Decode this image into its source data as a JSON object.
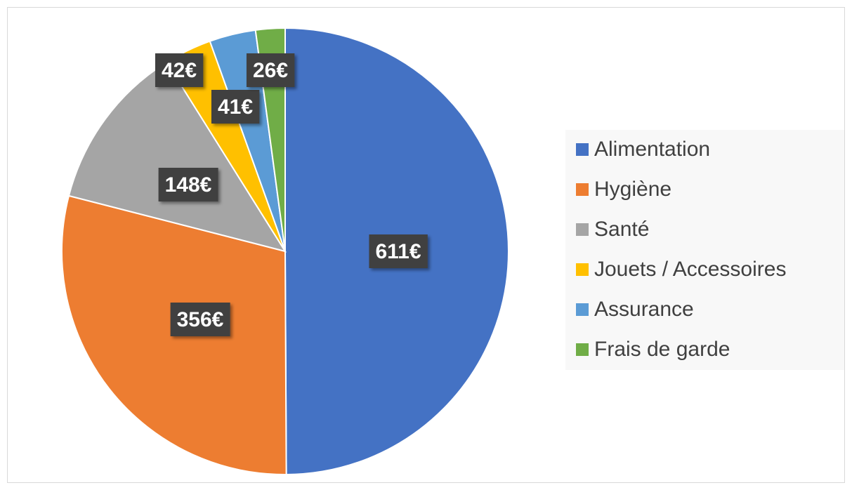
{
  "chart_data": {
    "type": "pie",
    "categories": [
      "Alimentation",
      "Hygiène",
      "Santé",
      "Jouets / Accessoires",
      "Assurance",
      "Frais de garde"
    ],
    "values": [
      611,
      356,
      148,
      42,
      41,
      26
    ],
    "value_labels": [
      "611€",
      "356€",
      "148€",
      "42€",
      "41€",
      "26€"
    ],
    "colors": [
      "#4472c4",
      "#ed7d31",
      "#a5a5a5",
      "#ffc000",
      "#5b9bd5",
      "#70ad47"
    ],
    "legend": "right"
  }
}
